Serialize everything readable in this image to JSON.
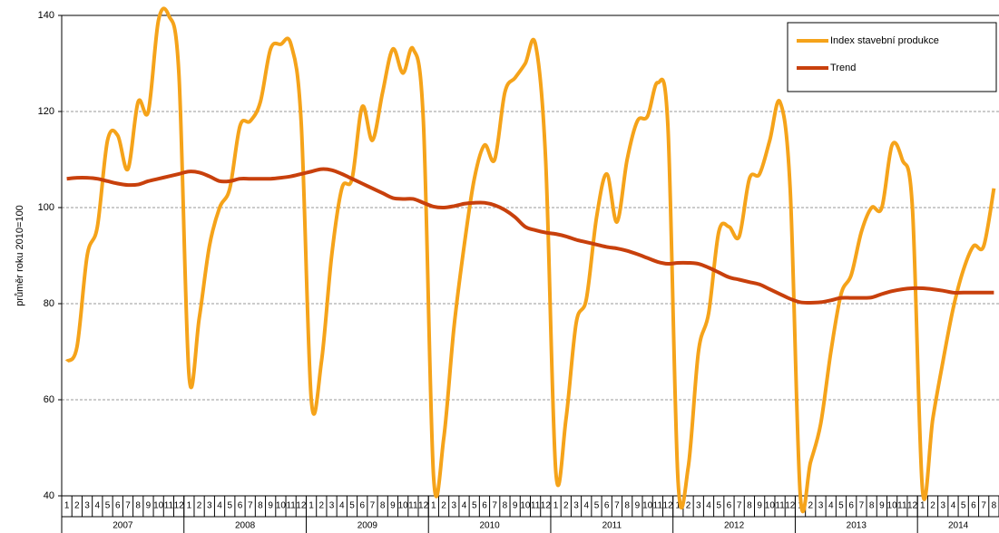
{
  "chart_data": {
    "type": "line",
    "y_label": "průměr roku 2010=100",
    "categories": [
      "1",
      "2",
      "3",
      "4",
      "5",
      "6",
      "7",
      "8",
      "9",
      "10",
      "11",
      "12",
      "1",
      "2",
      "3",
      "4",
      "5",
      "6",
      "7",
      "8",
      "9",
      "10",
      "11",
      "12",
      "1",
      "2",
      "3",
      "4",
      "5",
      "6",
      "7",
      "8",
      "9",
      "10",
      "11",
      "12",
      "1",
      "2",
      "3",
      "4",
      "5",
      "6",
      "7",
      "8",
      "9",
      "10",
      "11",
      "12",
      "1",
      "2",
      "3",
      "4",
      "5",
      "6",
      "7",
      "8",
      "9",
      "10",
      "11",
      "12",
      "1",
      "2",
      "3",
      "4",
      "5",
      "6",
      "7",
      "8",
      "9",
      "10",
      "11",
      "12",
      "1",
      "2",
      "3",
      "4",
      "5",
      "6",
      "7",
      "8",
      "9",
      "10",
      "11",
      "12",
      "1",
      "2",
      "3",
      "4",
      "5",
      "6",
      "7",
      "8"
    ],
    "x_groups": [
      "2007",
      "2008",
      "2009",
      "2010",
      "2011",
      "2012",
      "2013",
      "2014"
    ],
    "series": [
      {
        "name": "Index stavební produkce",
        "color": "#f5a31a",
        "values": [
          68,
          71,
          90,
          96,
          114,
          115,
          108,
          122,
          120,
          139,
          140,
          128,
          65,
          77,
          92,
          100,
          104,
          117,
          118,
          122,
          133,
          134,
          134,
          118,
          60,
          68,
          90,
          104,
          106,
          121,
          114,
          124,
          133,
          128,
          133,
          118,
          44,
          52,
          75,
          92,
          106,
          113,
          110,
          124,
          127,
          130,
          134,
          110,
          45,
          56,
          76,
          81,
          98,
          107,
          97,
          110,
          118,
          119,
          126,
          117,
          43,
          46,
          70,
          78,
          95,
          96,
          94,
          106,
          107,
          114,
          122,
          104,
          40,
          47,
          55,
          70,
          82,
          86,
          95,
          100,
          100,
          113,
          110,
          100,
          41,
          56,
          68,
          79,
          87,
          92,
          92,
          104
        ]
      },
      {
        "name": "Trend",
        "color": "#c8400c",
        "values": [
          106,
          106.2,
          106.2,
          106,
          105.5,
          105,
          104.7,
          104.8,
          105.5,
          106,
          106.5,
          107,
          107.5,
          107.3,
          106.5,
          105.5,
          105.5,
          106,
          106,
          106,
          106,
          106.2,
          106.5,
          107,
          107.5,
          108,
          107.8,
          107,
          106,
          105,
          104,
          103,
          102,
          101.8,
          101.8,
          101,
          100.2,
          100,
          100.3,
          100.8,
          101,
          101,
          100.5,
          99.5,
          98,
          96,
          95.3,
          94.8,
          94.5,
          94,
          93.3,
          92.8,
          92.3,
          91.8,
          91.5,
          91,
          90.3,
          89.5,
          88.7,
          88.3,
          88.5,
          88.5,
          88.3,
          87.5,
          86.5,
          85.5,
          85,
          84.5,
          84,
          83,
          82,
          81,
          80.3,
          80.2,
          80.3,
          80.7,
          81.2,
          81.2,
          81.2,
          81.3,
          82,
          82.6,
          83,
          83.2,
          83.2,
          83,
          82.7,
          82.3,
          82.3,
          82.3,
          82.3,
          82.3
        ]
      }
    ],
    "ylim": [
      40,
      140
    ],
    "yticks": [
      40,
      60,
      80,
      100,
      120,
      140
    ],
    "grid": true,
    "legend": "upper right"
  }
}
